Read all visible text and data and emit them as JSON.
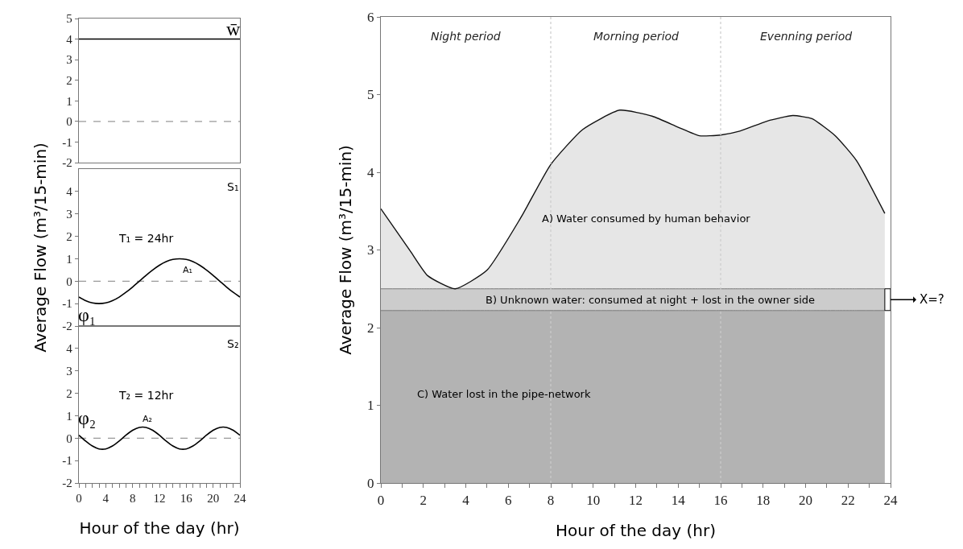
{
  "chart_data": [
    {
      "type": "line",
      "xlim": [
        0,
        24
      ],
      "ylim": [
        -2,
        5
      ],
      "yticks": [
        -2,
        -1,
        0,
        1,
        2,
        3,
        4,
        5
      ],
      "tick_labels": "y",
      "grid": false,
      "marker": "none",
      "line_style": "solid",
      "x": [
        0,
        24
      ],
      "series": [
        {
          "color": "#000000",
          "values": [
            4,
            4
          ]
        }
      ],
      "ref_lines": [
        {
          "axis": "y",
          "value": 0,
          "color": "#999999",
          "line_style": "dashed"
        }
      ],
      "annotations": [
        "w̄"
      ]
    },
    {
      "type": "line",
      "xlim": [
        0,
        24
      ],
      "ylim": [
        -2,
        5
      ],
      "yticks": [
        -2,
        -1,
        0,
        1,
        2,
        3,
        4
      ],
      "tick_labels": "y",
      "grid": false,
      "marker": "none",
      "line_style": "solid",
      "ylabel": "Average Flow (m³/15-min)",
      "x": [
        0,
        1,
        2,
        3,
        4,
        5,
        6,
        7,
        8,
        9,
        10,
        11,
        12,
        13,
        14,
        15,
        16,
        17,
        18,
        19,
        20,
        21,
        22,
        23,
        24
      ],
      "series": [
        {
          "color": "#000000",
          "values": [
            -0.71,
            -0.87,
            -0.97,
            -1,
            -0.97,
            -0.87,
            -0.71,
            -0.5,
            -0.26,
            0,
            0.26,
            0.5,
            0.71,
            0.87,
            0.97,
            1,
            0.97,
            0.87,
            0.71,
            0.5,
            0.26,
            0,
            -0.26,
            -0.5,
            -0.71
          ]
        }
      ],
      "ref_lines": [
        {
          "axis": "y",
          "value": 0,
          "color": "#999999",
          "line_style": "dashed"
        }
      ],
      "annotations": [
        "S₁",
        "T₁ = 24hr",
        "A₁",
        "φ₁"
      ]
    },
    {
      "type": "line",
      "xlim": [
        0,
        24
      ],
      "ylim": [
        -2,
        5
      ],
      "yticks": [
        -2,
        -1,
        0,
        1,
        2,
        3,
        4
      ],
      "grid": false,
      "marker": "none",
      "line_style": "solid",
      "xticks": [
        0,
        {
          "value": 1,
          "label": null
        },
        {
          "value": 2,
          "label": null
        },
        {
          "value": 3,
          "label": null
        },
        4,
        {
          "value": 5,
          "label": null
        },
        {
          "value": 6,
          "label": null
        },
        {
          "value": 7,
          "label": null
        },
        8,
        {
          "value": 9,
          "label": null
        },
        {
          "value": 10,
          "label": null
        },
        {
          "value": 11,
          "label": null
        },
        12,
        {
          "value": 13,
          "label": null
        },
        {
          "value": 14,
          "label": null
        },
        {
          "value": 15,
          "label": null
        },
        16,
        {
          "value": 17,
          "label": null
        },
        {
          "value": 18,
          "label": null
        },
        {
          "value": 19,
          "label": null
        },
        20,
        {
          "value": 21,
          "label": null
        },
        {
          "value": 22,
          "label": null
        },
        {
          "value": 23,
          "label": null
        },
        24
      ],
      "xlabel": "Hour of the day (hr)",
      "x": [
        0,
        1,
        2,
        3,
        4,
        5,
        6,
        7,
        8,
        9,
        10,
        11,
        12,
        13,
        14,
        15,
        16,
        17,
        18,
        19,
        20,
        21,
        22,
        23,
        24
      ],
      "series": [
        {
          "color": "#000000",
          "values": [
            0.13,
            -0.13,
            -0.35,
            -0.48,
            -0.48,
            -0.35,
            -0.13,
            0.13,
            0.35,
            0.48,
            0.48,
            0.35,
            0.13,
            -0.13,
            -0.35,
            -0.48,
            -0.48,
            -0.35,
            -0.13,
            0.13,
            0.35,
            0.48,
            0.48,
            0.35,
            0.13
          ]
        }
      ],
      "ref_lines": [
        {
          "axis": "y",
          "value": 0,
          "color": "#999999",
          "line_style": "dashed"
        }
      ],
      "annotations": [
        "S₂",
        "T₂ = 12hr",
        "A₂",
        "φ₂"
      ]
    },
    {
      "type": "area",
      "stacked": true,
      "xlim": [
        0,
        24
      ],
      "ylim": [
        0,
        6
      ],
      "yticks": [
        0,
        1,
        2,
        3,
        4,
        5,
        6
      ],
      "grid": false,
      "marker": "none",
      "line_style": "solid",
      "xticks": [
        0,
        {
          "value": 1,
          "label": null
        },
        2,
        {
          "value": 3,
          "label": null
        },
        4,
        {
          "value": 5,
          "label": null
        },
        6,
        {
          "value": 7,
          "label": null
        },
        8,
        {
          "value": 9,
          "label": null
        },
        10,
        {
          "value": 11,
          "label": null
        },
        12,
        {
          "value": 13,
          "label": null
        },
        14,
        {
          "value": 15,
          "label": null
        },
        16,
        {
          "value": 17,
          "label": null
        },
        18,
        {
          "value": 19,
          "label": null
        },
        20,
        {
          "value": 21,
          "label": null
        },
        22,
        {
          "value": 23,
          "label": null
        },
        24
      ],
      "xlabel": "Hour of the day (hr)",
      "ylabel": "Average Flow (m³/15-min)",
      "x": [
        0,
        1.4,
        2.2,
        3.5,
        5,
        6.6,
        8,
        9.5,
        11.25,
        12.8,
        14,
        15,
        16,
        16.9,
        18.2,
        19.4,
        20.3,
        21.4,
        22.4,
        23.73
      ],
      "series": [
        {
          "color": "#b3b3b3",
          "values": [
            2.22,
            2.22,
            2.22,
            2.22,
            2.22,
            2.22,
            2.22,
            2.22,
            2.22,
            2.22,
            2.22,
            2.22,
            2.22,
            2.22,
            2.22,
            2.22,
            2.22,
            2.22,
            2.22,
            2.22
          ]
        },
        {
          "color": "#cccccc",
          "values": [
            0.28,
            0.28,
            0.28,
            0.28,
            0.28,
            0.28,
            0.28,
            0.28,
            0.28,
            0.28,
            0.28,
            0.28,
            0.28,
            0.28,
            0.28,
            0.28,
            0.28,
            0.28,
            0.28,
            0.28
          ]
        },
        {
          "color": "#e6e6e6",
          "values": [
            1.03,
            0.48,
            0.17,
            0,
            0.24,
            0.92,
            1.6,
            2.05,
            2.3,
            2.22,
            2.08,
            1.97,
            1.98,
            2.03,
            2.16,
            2.23,
            2.19,
            1.97,
            1.65,
            0.97
          ]
        }
      ],
      "ref_lines": [
        {
          "axis": "x",
          "value": 8,
          "color": "#cccccc",
          "line_style": "dotted"
        },
        {
          "axis": "x",
          "value": 16,
          "color": "#cccccc",
          "line_style": "dotted"
        }
      ],
      "annotations": [
        "Night period",
        "Morning period",
        "Evenning period",
        "A) Water consumed by human behavior",
        "B) Unknown water: consumed at night + lost in the owner side",
        "C) Water lost in the pipe-network",
        "X=?"
      ]
    }
  ]
}
